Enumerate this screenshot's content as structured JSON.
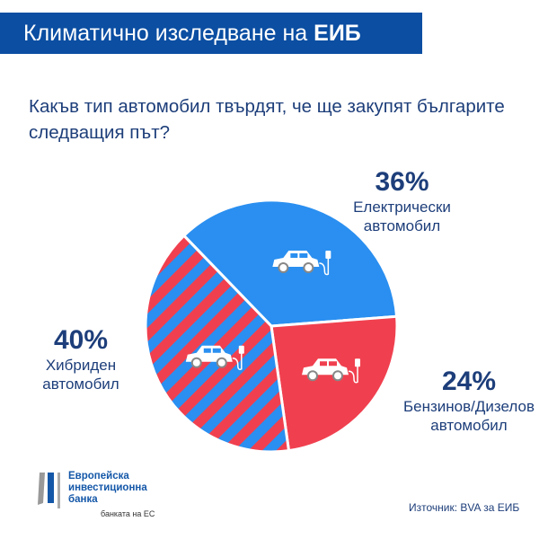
{
  "header": {
    "title": "Климатично изследване на",
    "title_bold": "ЕИБ"
  },
  "question": "Какъв тип автомобил твърдят, че ще закупят българите следващия път?",
  "colors": {
    "header": "#0b4ea2",
    "electric": "#2a8ff0",
    "petrol": "#f0404f",
    "text": "#1d3e7a"
  },
  "chart_data": {
    "type": "pie",
    "slices": [
      {
        "label": "Електрически автомобил",
        "value": 36,
        "value_label": "36%",
        "icon": "electric-car-icon",
        "fill": "solid-blue"
      },
      {
        "label": "Бензинов/Дизелов автомобил",
        "value": 24,
        "value_label": "24%",
        "icon": "fuel-car-icon",
        "fill": "solid-red"
      },
      {
        "label": "Хибриден автомобил",
        "value": 40,
        "value_label": "40%",
        "icon": "hybrid-car-icon",
        "fill": "striped-red-blue"
      }
    ]
  },
  "labels": {
    "electric": {
      "pct": "36%",
      "l1": "Електрически",
      "l2": "автомобил"
    },
    "petrol": {
      "pct": "24%",
      "l1": "Бензинов/Дизелов",
      "l2": "автомобил"
    },
    "hybrid": {
      "pct": "40%",
      "l1": "Хибриден",
      "l2": "автомобил"
    }
  },
  "footer": {
    "logo_l1": "Европейска",
    "logo_l2": "инвестиционна",
    "logo_l3": "банка",
    "tagline": "банката на ЕС",
    "source": "Източник: BVA за ЕИБ"
  }
}
